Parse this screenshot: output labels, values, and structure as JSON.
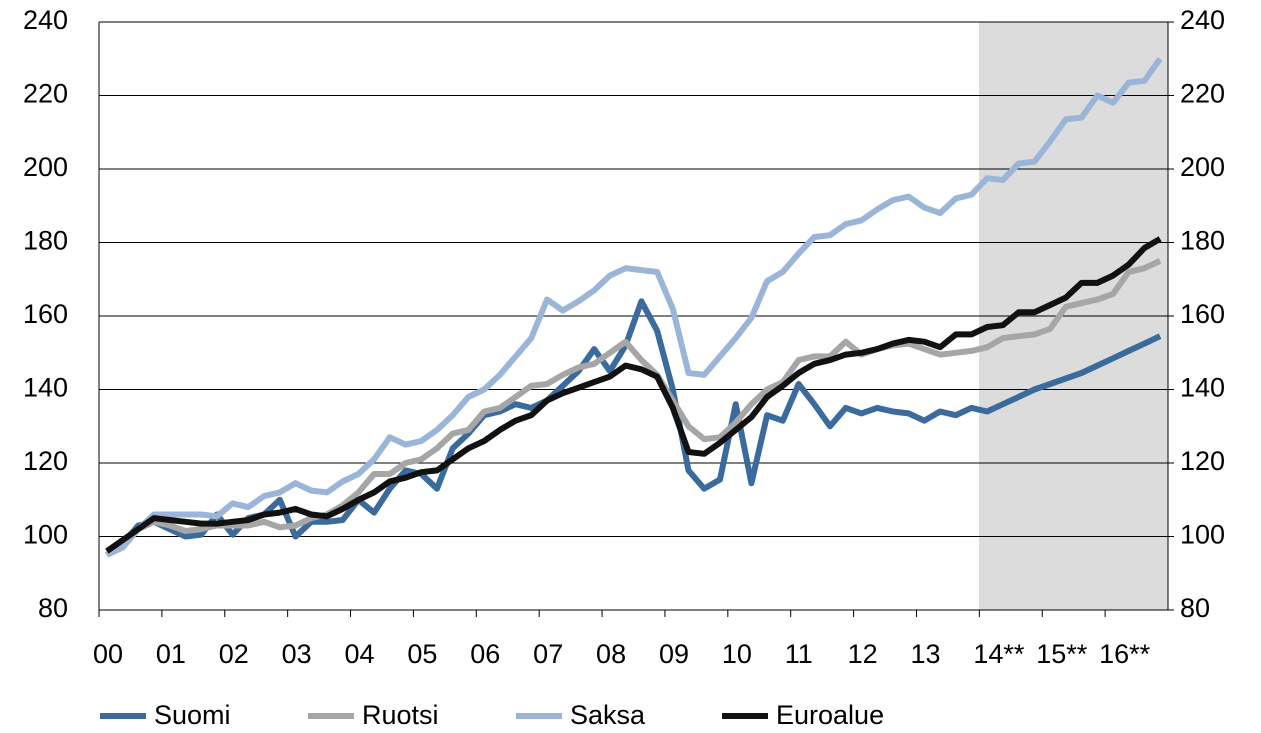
{
  "chart_data": {
    "type": "line",
    "categories": [
      "00",
      null,
      null,
      null,
      "01",
      null,
      null,
      null,
      "02",
      null,
      null,
      null,
      "03",
      null,
      null,
      null,
      "04",
      null,
      null,
      null,
      "05",
      null,
      null,
      null,
      "06",
      null,
      null,
      null,
      "07",
      null,
      null,
      null,
      "08",
      null,
      null,
      null,
      "09",
      null,
      null,
      null,
      "10",
      null,
      null,
      null,
      "11",
      null,
      null,
      null,
      "12",
      null,
      null,
      null,
      "13",
      null,
      null,
      null,
      "14**",
      null,
      null,
      null,
      "15**",
      null,
      null,
      null,
      "16**",
      null,
      null,
      null
    ],
    "series": [
      {
        "name": "Suomi",
        "color": "#3a6b9c",
        "values": [
          95,
          98,
          103,
          104,
          102,
          100,
          100.5,
          106,
          100.5,
          105,
          106,
          110,
          100,
          104,
          104,
          104.5,
          110,
          106.5,
          113,
          118,
          117,
          113,
          124,
          128,
          133,
          134,
          136,
          135,
          137,
          141,
          145,
          151,
          145,
          152,
          164,
          156,
          140,
          118,
          113,
          115.5,
          136,
          114.5,
          133,
          131.5,
          141.5,
          136,
          130,
          135,
          133.5,
          135,
          134,
          133.5,
          131.5,
          134,
          133,
          135,
          134,
          136,
          138,
          140,
          141.5,
          143,
          144.5,
          146.5,
          148.5,
          150.5,
          152.5,
          154.5
        ]
      },
      {
        "name": "Ruotsi",
        "color": "#a6a6a6",
        "values": [
          96,
          99,
          102,
          104,
          103,
          101.5,
          102,
          103,
          103,
          103,
          104,
          102.5,
          103,
          105,
          106,
          108.5,
          112,
          117,
          117,
          120,
          121,
          124,
          128,
          129,
          134,
          135,
          138,
          141,
          141.5,
          144,
          146,
          147,
          150,
          153,
          148,
          144,
          137,
          130,
          126.5,
          127,
          131,
          136,
          140,
          142,
          148,
          149,
          149,
          153,
          149.5,
          151,
          152,
          152.5,
          151,
          149.5,
          150,
          150.5,
          151.5,
          154,
          154.5,
          155,
          156.5,
          162.5,
          163.5,
          164.5,
          166,
          172,
          173,
          175
        ]
      },
      {
        "name": "Saksa",
        "color": "#9bb5d8",
        "values": [
          95,
          97,
          102,
          106,
          106,
          106,
          106,
          105.5,
          109,
          108,
          111,
          112,
          114.5,
          112.5,
          112,
          115,
          117,
          121,
          127,
          125,
          126,
          129,
          133,
          138,
          140,
          144,
          149,
          154,
          164.5,
          161.5,
          164,
          167,
          171,
          173,
          172.5,
          172,
          162,
          144.5,
          144,
          149,
          154,
          159.5,
          169.5,
          172,
          177,
          181.5,
          182,
          185,
          186,
          189,
          191.5,
          192.5,
          189.5,
          188,
          192,
          193,
          197.5,
          197,
          201.5,
          202,
          207.5,
          213.5,
          214,
          220,
          218,
          223.5,
          224,
          230
        ]
      },
      {
        "name": "Euroalue",
        "color": "#111111",
        "values": [
          96,
          99,
          102,
          105,
          104.5,
          104,
          103.5,
          103.5,
          104,
          104.5,
          106,
          106.5,
          107.5,
          106,
          105.5,
          107.5,
          110,
          112,
          115,
          116,
          117.5,
          118,
          121,
          124,
          126,
          129,
          131.5,
          133,
          137,
          139,
          140.5,
          142,
          143.5,
          146.5,
          145.5,
          143.5,
          135,
          123,
          122.5,
          125.5,
          129,
          132.5,
          138,
          141,
          144.5,
          147,
          148,
          149.5,
          150,
          151,
          152.5,
          153.5,
          153,
          151.5,
          155,
          155,
          157,
          157.5,
          161,
          161,
          163,
          165,
          169,
          169,
          171,
          174,
          178.5,
          181
        ]
      }
    ],
    "ylim": [
      80,
      240
    ],
    "yticks": [
      80,
      100,
      120,
      140,
      160,
      180,
      200,
      220,
      240
    ],
    "y2lim": [
      80,
      240
    ],
    "y2ticks": [
      80,
      100,
      120,
      140,
      160,
      180,
      200,
      220,
      240
    ],
    "grid": true
  }
}
